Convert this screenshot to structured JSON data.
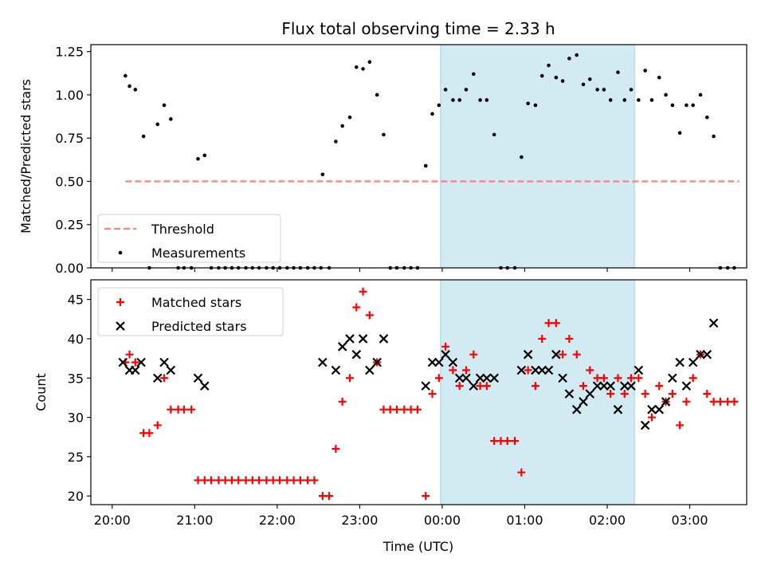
{
  "figure": {
    "title": "Flux total observing time = 2.33 h",
    "xlabel": "Time (UTC)",
    "x_tick_labels": [
      "20:00",
      "21:00",
      "22:00",
      "23:00",
      "00:00",
      "01:00",
      "02:00",
      "03:00"
    ]
  },
  "chart_data": [
    {
      "type": "scatter",
      "ylabel": "Matched/Predicted stars",
      "x_unit": "hours since 20:00 UTC",
      "ylim": [
        0,
        1.29
      ],
      "y_ticks": [
        0.0,
        0.25,
        0.5,
        0.75,
        1.0,
        1.25
      ],
      "y_tick_labels": [
        "0.00",
        "0.25",
        "0.50",
        "0.75",
        "1.00",
        "1.25"
      ],
      "legend_position": "lower-left",
      "shaded_region": {
        "x": [
          3.98,
          6.33
        ],
        "color": "#add8e6"
      },
      "series": [
        {
          "name": "Threshold",
          "kind": "line",
          "color": "#ff7f7f",
          "points": [
            [
              0.16,
              0.5
            ],
            [
              7.6,
              0.5
            ]
          ]
        },
        {
          "name": "Measurements",
          "kind": "points",
          "color": "#000000",
          "points": [
            [
              0.16,
              1.11
            ],
            [
              0.21,
              1.05
            ],
            [
              0.28,
              1.03
            ],
            [
              0.38,
              0.76
            ],
            [
              0.45,
              0.0
            ],
            [
              0.55,
              0.83
            ],
            [
              0.63,
              0.94
            ],
            [
              0.71,
              0.86
            ],
            [
              0.8,
              0.0
            ],
            [
              0.87,
              0.0
            ],
            [
              0.96,
              0.0
            ],
            [
              1.04,
              0.63
            ],
            [
              1.12,
              0.65
            ],
            [
              1.2,
              0.0
            ],
            [
              1.29,
              0.0
            ],
            [
              1.37,
              0.0
            ],
            [
              1.45,
              0.0
            ],
            [
              1.53,
              0.0
            ],
            [
              1.62,
              0.0
            ],
            [
              1.7,
              0.0
            ],
            [
              1.78,
              0.0
            ],
            [
              1.87,
              0.0
            ],
            [
              1.95,
              0.0
            ],
            [
              2.03,
              0.0
            ],
            [
              2.12,
              0.0
            ],
            [
              2.2,
              0.0
            ],
            [
              2.28,
              0.0
            ],
            [
              2.37,
              0.0
            ],
            [
              2.45,
              0.0
            ],
            [
              2.53,
              0.0
            ],
            [
              2.55,
              0.54
            ],
            [
              2.63,
              0.0
            ],
            [
              2.71,
              0.73
            ],
            [
              2.79,
              0.82
            ],
            [
              2.88,
              0.87
            ],
            [
              2.96,
              1.16
            ],
            [
              3.04,
              1.15
            ],
            [
              3.12,
              1.19
            ],
            [
              3.21,
              1.0
            ],
            [
              3.29,
              0.77
            ],
            [
              3.37,
              0.0
            ],
            [
              3.45,
              0.0
            ],
            [
              3.54,
              0.0
            ],
            [
              3.62,
              0.0
            ],
            [
              3.7,
              0.0
            ],
            [
              3.8,
              0.59
            ],
            [
              3.88,
              0.89
            ],
            [
              3.96,
              0.94
            ],
            [
              4.04,
              1.03
            ],
            [
              4.13,
              0.97
            ],
            [
              4.21,
              0.97
            ],
            [
              4.29,
              1.03
            ],
            [
              4.38,
              1.12
            ],
            [
              4.46,
              0.97
            ],
            [
              4.54,
              0.97
            ],
            [
              4.63,
              0.77
            ],
            [
              4.71,
              0.0
            ],
            [
              4.79,
              0.0
            ],
            [
              4.88,
              0.0
            ],
            [
              4.96,
              0.64
            ],
            [
              5.04,
              0.95
            ],
            [
              5.13,
              0.94
            ],
            [
              5.21,
              1.11
            ],
            [
              5.29,
              1.17
            ],
            [
              5.38,
              1.1
            ],
            [
              5.46,
              1.08
            ],
            [
              5.54,
              1.21
            ],
            [
              5.63,
              1.23
            ],
            [
              5.71,
              1.06
            ],
            [
              5.79,
              1.09
            ],
            [
              5.88,
              1.03
            ],
            [
              5.96,
              1.03
            ],
            [
              6.04,
              0.97
            ],
            [
              6.13,
              1.13
            ],
            [
              6.21,
              0.97
            ],
            [
              6.29,
              1.03
            ],
            [
              6.38,
              0.97
            ],
            [
              6.46,
              1.14
            ],
            [
              6.54,
              0.97
            ],
            [
              6.63,
              1.1
            ],
            [
              6.71,
              1.0
            ],
            [
              6.79,
              0.94
            ],
            [
              6.88,
              0.78
            ],
            [
              6.96,
              0.94
            ],
            [
              7.04,
              0.94
            ],
            [
              7.13,
              1.0
            ],
            [
              7.21,
              0.87
            ],
            [
              7.29,
              0.76
            ],
            [
              7.37,
              0.0
            ],
            [
              7.46,
              0.0
            ],
            [
              7.54,
              0.0
            ]
          ]
        }
      ]
    },
    {
      "type": "scatter",
      "ylabel": "Count",
      "x_unit": "hours since 20:00 UTC",
      "ylim": [
        18.9,
        47.5
      ],
      "y_ticks": [
        20,
        25,
        30,
        35,
        40,
        45
      ],
      "y_tick_labels": [
        "20",
        "25",
        "30",
        "35",
        "40",
        "45"
      ],
      "legend_position": "upper-left",
      "shaded_region": {
        "x": [
          3.98,
          6.33
        ],
        "color": "#add8e6"
      },
      "series": [
        {
          "name": "Matched stars",
          "kind": "plus",
          "color": "#ff0000",
          "points": [
            [
              0.16,
              37
            ],
            [
              0.21,
              38
            ],
            [
              0.28,
              37
            ],
            [
              0.38,
              28
            ],
            [
              0.45,
              28
            ],
            [
              0.55,
              29
            ],
            [
              0.63,
              35
            ],
            [
              0.71,
              31
            ],
            [
              0.8,
              31
            ],
            [
              0.87,
              31
            ],
            [
              0.96,
              31
            ],
            [
              1.04,
              22
            ],
            [
              1.12,
              22
            ],
            [
              1.2,
              22
            ],
            [
              1.29,
              22
            ],
            [
              1.37,
              22
            ],
            [
              1.45,
              22
            ],
            [
              1.53,
              22
            ],
            [
              1.62,
              22
            ],
            [
              1.7,
              22
            ],
            [
              1.78,
              22
            ],
            [
              1.87,
              22
            ],
            [
              1.95,
              22
            ],
            [
              2.03,
              22
            ],
            [
              2.12,
              22
            ],
            [
              2.2,
              22
            ],
            [
              2.28,
              22
            ],
            [
              2.37,
              22
            ],
            [
              2.45,
              22
            ],
            [
              2.55,
              20
            ],
            [
              2.63,
              20
            ],
            [
              2.71,
              26
            ],
            [
              2.79,
              32
            ],
            [
              2.88,
              35
            ],
            [
              2.96,
              44
            ],
            [
              3.04,
              46
            ],
            [
              3.12,
              43
            ],
            [
              3.21,
              37
            ],
            [
              3.29,
              31
            ],
            [
              3.37,
              31
            ],
            [
              3.45,
              31
            ],
            [
              3.54,
              31
            ],
            [
              3.62,
              31
            ],
            [
              3.7,
              31
            ],
            [
              3.8,
              20
            ],
            [
              3.88,
              33
            ],
            [
              3.96,
              35
            ],
            [
              4.04,
              39
            ],
            [
              4.13,
              36
            ],
            [
              4.21,
              34
            ],
            [
              4.29,
              36
            ],
            [
              4.38,
              38
            ],
            [
              4.46,
              34
            ],
            [
              4.54,
              34
            ],
            [
              4.63,
              27
            ],
            [
              4.71,
              27
            ],
            [
              4.79,
              27
            ],
            [
              4.88,
              27
            ],
            [
              4.96,
              23
            ],
            [
              5.04,
              36
            ],
            [
              5.13,
              34
            ],
            [
              5.21,
              40
            ],
            [
              5.29,
              42
            ],
            [
              5.38,
              42
            ],
            [
              5.46,
              38
            ],
            [
              5.54,
              40
            ],
            [
              5.63,
              38
            ],
            [
              5.71,
              34
            ],
            [
              5.79,
              36
            ],
            [
              5.88,
              35
            ],
            [
              5.96,
              35
            ],
            [
              6.04,
              33
            ],
            [
              6.13,
              35
            ],
            [
              6.21,
              33
            ],
            [
              6.29,
              35
            ],
            [
              6.38,
              35
            ],
            [
              6.46,
              33
            ],
            [
              6.54,
              30
            ],
            [
              6.63,
              34
            ],
            [
              6.71,
              32
            ],
            [
              6.79,
              33
            ],
            [
              6.88,
              29
            ],
            [
              6.96,
              32
            ],
            [
              7.04,
              35
            ],
            [
              7.13,
              38
            ],
            [
              7.21,
              33
            ],
            [
              7.29,
              32
            ],
            [
              7.37,
              32
            ],
            [
              7.46,
              32
            ],
            [
              7.54,
              32
            ]
          ]
        },
        {
          "name": "Predicted stars",
          "kind": "cross",
          "color": "#000000",
          "points": [
            [
              0.13,
              37
            ],
            [
              0.21,
              36
            ],
            [
              0.28,
              36
            ],
            [
              0.35,
              37
            ],
            [
              0.55,
              35
            ],
            [
              0.63,
              37
            ],
            [
              0.71,
              36
            ],
            [
              1.04,
              35
            ],
            [
              1.12,
              34
            ],
            [
              2.55,
              37
            ],
            [
              2.71,
              36
            ],
            [
              2.79,
              39
            ],
            [
              2.88,
              40
            ],
            [
              2.96,
              38
            ],
            [
              3.04,
              40
            ],
            [
              3.12,
              36
            ],
            [
              3.21,
              37
            ],
            [
              3.29,
              40
            ],
            [
              3.8,
              34
            ],
            [
              3.88,
              37
            ],
            [
              3.96,
              37
            ],
            [
              4.04,
              38
            ],
            [
              4.13,
              37
            ],
            [
              4.21,
              35
            ],
            [
              4.29,
              35
            ],
            [
              4.38,
              34
            ],
            [
              4.46,
              35
            ],
            [
              4.54,
              35
            ],
            [
              4.63,
              35
            ],
            [
              4.96,
              36
            ],
            [
              5.04,
              38
            ],
            [
              5.13,
              36
            ],
            [
              5.21,
              36
            ],
            [
              5.29,
              36
            ],
            [
              5.38,
              38
            ],
            [
              5.46,
              35
            ],
            [
              5.54,
              33
            ],
            [
              5.63,
              31
            ],
            [
              5.71,
              32
            ],
            [
              5.79,
              33
            ],
            [
              5.88,
              34
            ],
            [
              5.96,
              34
            ],
            [
              6.04,
              34
            ],
            [
              6.13,
              31
            ],
            [
              6.21,
              34
            ],
            [
              6.29,
              34
            ],
            [
              6.38,
              36
            ],
            [
              6.46,
              29
            ],
            [
              6.54,
              31
            ],
            [
              6.63,
              31
            ],
            [
              6.71,
              32
            ],
            [
              6.79,
              35
            ],
            [
              6.88,
              37
            ],
            [
              6.96,
              34
            ],
            [
              7.04,
              37
            ],
            [
              7.13,
              38
            ],
            [
              7.21,
              38
            ],
            [
              7.29,
              42
            ]
          ]
        }
      ]
    }
  ]
}
